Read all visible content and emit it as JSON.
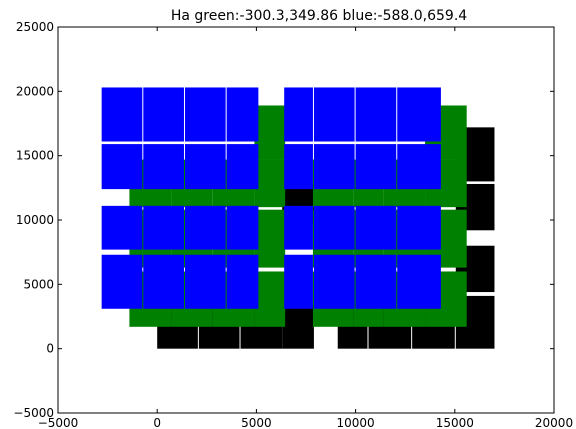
{
  "chart_data": {
    "type": "rectangles",
    "title": "Ha green:-300.3,349.86 blue:-588.0,659.4",
    "xlabel": "",
    "ylabel": "",
    "xlim": [
      -5000,
      20000
    ],
    "ylim": [
      -5000,
      25000
    ],
    "xticks": [
      -5000,
      0,
      5000,
      10000,
      15000,
      20000
    ],
    "yticks": [
      -5000,
      0,
      5000,
      10000,
      15000,
      20000,
      25000
    ],
    "grid": false,
    "series": [
      {
        "color": "#000000",
        "rects": [
          {
            "x0": 0,
            "x1": 2050,
            "y0": 0,
            "y1": 3400
          },
          {
            "x0": 2100,
            "x1": 4150,
            "y0": 0,
            "y1": 3400
          },
          {
            "x0": 4200,
            "x1": 6300,
            "y0": 0,
            "y1": 3400
          },
          {
            "x0": 6300,
            "x1": 7900,
            "y0": 0,
            "y1": 3400
          },
          {
            "x0": 9100,
            "x1": 10600,
            "y0": 0,
            "y1": 3400
          },
          {
            "x0": 10650,
            "x1": 12800,
            "y0": 0,
            "y1": 3400
          },
          {
            "x0": 12850,
            "x1": 15000,
            "y0": 0,
            "y1": 3400
          },
          {
            "x0": 15050,
            "x1": 17000,
            "y0": 0,
            "y1": 4100
          },
          {
            "x0": 15050,
            "x1": 17000,
            "y0": 4400,
            "y1": 8000
          },
          {
            "x0": 15050,
            "x1": 17000,
            "y0": 9200,
            "y1": 12800
          },
          {
            "x0": 15050,
            "x1": 17000,
            "y0": 13000,
            "y1": 17200
          },
          {
            "x0": 6300,
            "x1": 7900,
            "y0": 9600,
            "y1": 12800
          },
          {
            "x0": 4200,
            "x1": 6300,
            "y0": 17000,
            "y1": 18900
          }
        ]
      },
      {
        "color": "#008000",
        "rects": [
          {
            "x0": -1400,
            "x1": 700,
            "y0": 1700,
            "y1": 6000
          },
          {
            "x0": 700,
            "x1": 2800,
            "y0": 1700,
            "y1": 6000
          },
          {
            "x0": 2800,
            "x1": 4900,
            "y0": 1700,
            "y1": 6000
          },
          {
            "x0": 4900,
            "x1": 6450,
            "y0": 1700,
            "y1": 6000
          },
          {
            "x0": 7850,
            "x1": 9900,
            "y0": 1700,
            "y1": 6000
          },
          {
            "x0": 9900,
            "x1": 11400,
            "y0": 1700,
            "y1": 6000
          },
          {
            "x0": 11400,
            "x1": 13500,
            "y0": 1700,
            "y1": 6000
          },
          {
            "x0": 13500,
            "x1": 15600,
            "y0": 1700,
            "y1": 6000
          },
          {
            "x0": -1400,
            "x1": 700,
            "y0": 6300,
            "y1": 10800
          },
          {
            "x0": 700,
            "x1": 2800,
            "y0": 6300,
            "y1": 10800
          },
          {
            "x0": 2800,
            "x1": 4900,
            "y0": 6300,
            "y1": 10800
          },
          {
            "x0": 4900,
            "x1": 6450,
            "y0": 6300,
            "y1": 10800
          },
          {
            "x0": 7850,
            "x1": 9900,
            "y0": 6300,
            "y1": 10800
          },
          {
            "x0": 9900,
            "x1": 11400,
            "y0": 6300,
            "y1": 10800
          },
          {
            "x0": 11400,
            "x1": 13500,
            "y0": 6300,
            "y1": 10800
          },
          {
            "x0": 13500,
            "x1": 15600,
            "y0": 6300,
            "y1": 10800
          },
          {
            "x0": -1400,
            "x1": 700,
            "y0": 11000,
            "y1": 14700
          },
          {
            "x0": 700,
            "x1": 2800,
            "y0": 11000,
            "y1": 14700
          },
          {
            "x0": 2800,
            "x1": 4900,
            "y0": 11000,
            "y1": 14700
          },
          {
            "x0": 4900,
            "x1": 6450,
            "y0": 11000,
            "y1": 14700
          },
          {
            "x0": 7850,
            "x1": 9900,
            "y0": 11000,
            "y1": 14700
          },
          {
            "x0": 9900,
            "x1": 11400,
            "y0": 11000,
            "y1": 14700
          },
          {
            "x0": 11400,
            "x1": 13500,
            "y0": 11000,
            "y1": 14700
          },
          {
            "x0": 13500,
            "x1": 15600,
            "y0": 11000,
            "y1": 14700
          },
          {
            "x0": 4900,
            "x1": 6450,
            "y0": 14700,
            "y1": 18900
          },
          {
            "x0": 13500,
            "x1": 15600,
            "y0": 14700,
            "y1": 18900
          }
        ]
      },
      {
        "color": "#0000ff",
        "rects": [
          {
            "x0": -2800,
            "x1": -750,
            "y0": 3100,
            "y1": 7300
          },
          {
            "x0": -700,
            "x1": 1350,
            "y0": 3100,
            "y1": 7300
          },
          {
            "x0": 1400,
            "x1": 3450,
            "y0": 3100,
            "y1": 7300
          },
          {
            "x0": 3500,
            "x1": 5100,
            "y0": 3100,
            "y1": 7300
          },
          {
            "x0": 6400,
            "x1": 7850,
            "y0": 3100,
            "y1": 7300
          },
          {
            "x0": 7900,
            "x1": 9950,
            "y0": 3100,
            "y1": 7300
          },
          {
            "x0": 10000,
            "x1": 12050,
            "y0": 3100,
            "y1": 7300
          },
          {
            "x0": 12100,
            "x1": 14300,
            "y0": 3100,
            "y1": 7300
          },
          {
            "x0": -2800,
            "x1": -750,
            "y0": 7700,
            "y1": 11100
          },
          {
            "x0": -700,
            "x1": 1350,
            "y0": 7700,
            "y1": 11100
          },
          {
            "x0": 1400,
            "x1": 3450,
            "y0": 7700,
            "y1": 11100
          },
          {
            "x0": 3500,
            "x1": 5100,
            "y0": 7700,
            "y1": 11100
          },
          {
            "x0": 6400,
            "x1": 7850,
            "y0": 7700,
            "y1": 11100
          },
          {
            "x0": 7900,
            "x1": 9950,
            "y0": 7700,
            "y1": 11100
          },
          {
            "x0": 10000,
            "x1": 12050,
            "y0": 7700,
            "y1": 11100
          },
          {
            "x0": 12100,
            "x1": 14300,
            "y0": 7700,
            "y1": 11100
          },
          {
            "x0": -2800,
            "x1": -750,
            "y0": 12400,
            "y1": 15900
          },
          {
            "x0": -700,
            "x1": 1350,
            "y0": 12400,
            "y1": 15900
          },
          {
            "x0": 1400,
            "x1": 3450,
            "y0": 12400,
            "y1": 15900
          },
          {
            "x0": 3500,
            "x1": 5100,
            "y0": 12400,
            "y1": 15900
          },
          {
            "x0": 6400,
            "x1": 7850,
            "y0": 12400,
            "y1": 15900
          },
          {
            "x0": 7900,
            "x1": 9950,
            "y0": 12400,
            "y1": 15900
          },
          {
            "x0": 10000,
            "x1": 12050,
            "y0": 12400,
            "y1": 15900
          },
          {
            "x0": 12100,
            "x1": 14300,
            "y0": 12400,
            "y1": 15900
          },
          {
            "x0": -2800,
            "x1": -750,
            "y0": 16100,
            "y1": 20300
          },
          {
            "x0": -700,
            "x1": 1350,
            "y0": 16100,
            "y1": 20300
          },
          {
            "x0": 1400,
            "x1": 3450,
            "y0": 16100,
            "y1": 20300
          },
          {
            "x0": 3500,
            "x1": 5100,
            "y0": 16100,
            "y1": 20300
          },
          {
            "x0": 6400,
            "x1": 7850,
            "y0": 16100,
            "y1": 20300
          },
          {
            "x0": 7900,
            "x1": 9950,
            "y0": 16100,
            "y1": 20300
          },
          {
            "x0": 10000,
            "x1": 12050,
            "y0": 16100,
            "y1": 20300
          },
          {
            "x0": 12100,
            "x1": 14300,
            "y0": 16100,
            "y1": 20300
          }
        ]
      }
    ]
  }
}
